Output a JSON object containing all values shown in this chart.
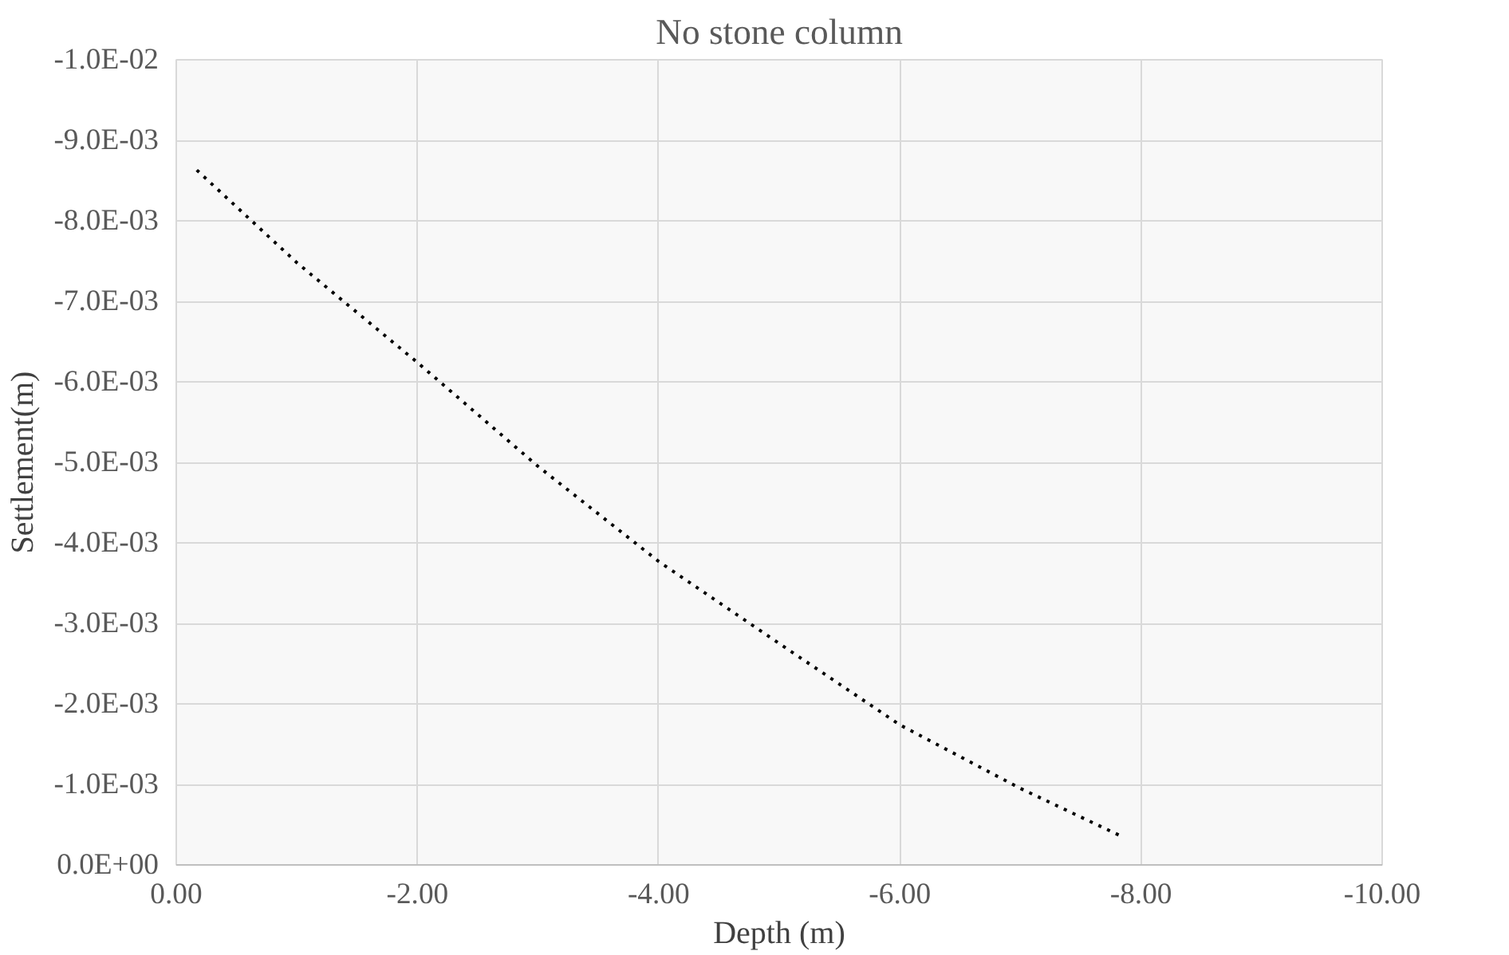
{
  "chart_data": {
    "type": "line",
    "title": "No stone column",
    "xlabel": "Depth (m)",
    "ylabel": "Settlement(m)",
    "x": [
      -0.17,
      -1,
      -2,
      -3,
      -4,
      -5,
      -6,
      -7,
      -7.86
    ],
    "series": [
      {
        "color": "#000000",
        "values": [
          -0.00863,
          -0.00748,
          -0.00624,
          -0.00495,
          -0.00377,
          -0.00275,
          -0.00174,
          -0.00095,
          -0.00034
        ]
      }
    ],
    "xlim": [
      0,
      -10
    ],
    "xticks": [
      {
        "value": 0,
        "label": "0.00"
      },
      {
        "value": -2,
        "label": "-2.00"
      },
      {
        "value": -4,
        "label": "-4.00"
      },
      {
        "value": -6,
        "label": "-6.00"
      },
      {
        "value": -8,
        "label": "-8.00"
      },
      {
        "value": -10,
        "label": "-10.00"
      }
    ],
    "ylim": [
      0,
      -0.01
    ],
    "yticks": [
      {
        "value": 0,
        "label": "0.0E+00"
      },
      {
        "value": -0.001,
        "label": "-1.0E-03"
      },
      {
        "value": -0.002,
        "label": "-2.0E-03"
      },
      {
        "value": -0.003,
        "label": "-3.0E-03"
      },
      {
        "value": -0.004,
        "label": "-4.0E-03"
      },
      {
        "value": -0.005,
        "label": "-5.0E-03"
      },
      {
        "value": -0.006,
        "label": "-6.0E-03"
      },
      {
        "value": -0.007,
        "label": "-7.0E-03"
      },
      {
        "value": -0.008,
        "label": "-8.0E-03"
      },
      {
        "value": -0.009,
        "label": "-9.0E-03"
      },
      {
        "value": -0.01,
        "label": "-1.0E-02"
      }
    ],
    "grid": true,
    "line_style": "dotted",
    "marker": "none"
  }
}
